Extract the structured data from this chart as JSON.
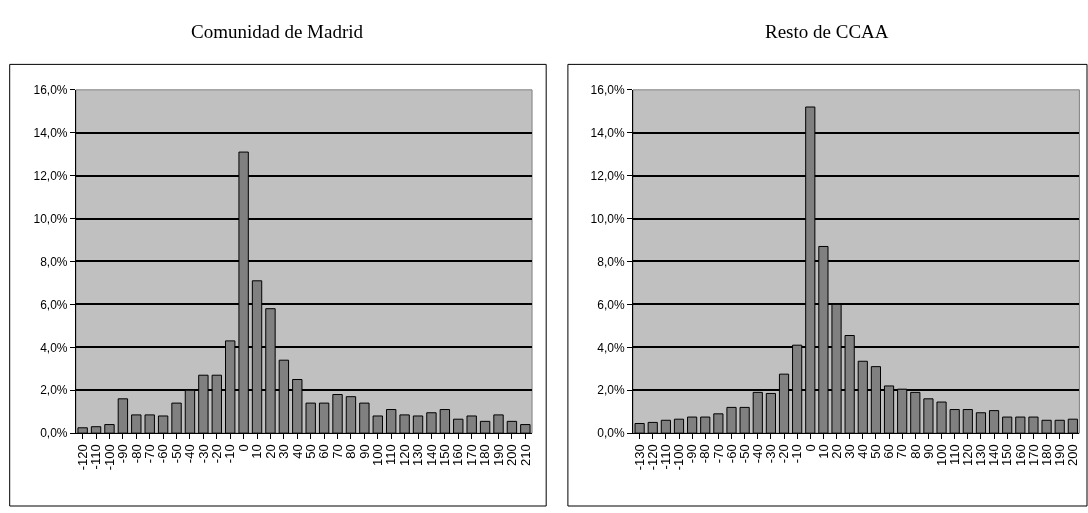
{
  "chart_data": [
    {
      "type": "bar",
      "title": "Comunidad de Madrid",
      "categories": [
        "-120",
        "-110",
        "-100",
        "-90",
        "-80",
        "-70",
        "-60",
        "-50",
        "-40",
        "-30",
        "-20",
        "-10",
        "0",
        "10",
        "20",
        "30",
        "40",
        "50",
        "60",
        "70",
        "80",
        "90",
        "100",
        "110",
        "120",
        "130",
        "140",
        "150",
        "160",
        "170",
        "180",
        "190",
        "200",
        "210"
      ],
      "values": [
        0.25,
        0.3,
        0.4,
        1.6,
        0.85,
        0.85,
        0.8,
        1.4,
        2.0,
        2.7,
        2.7,
        4.3,
        13.1,
        7.1,
        5.8,
        3.4,
        2.5,
        1.4,
        1.4,
        1.8,
        1.7,
        1.4,
        0.8,
        1.1,
        0.85,
        0.8,
        0.95,
        1.1,
        0.65,
        0.8,
        0.55,
        0.85,
        0.55,
        0.4
      ],
      "color": "#808080",
      "ylim": [
        0,
        16
      ],
      "yticks": [
        {
          "value": 0,
          "label": "0,0%"
        },
        {
          "value": 2,
          "label": "2,0%"
        },
        {
          "value": 4,
          "label": "4,0%"
        },
        {
          "value": 6,
          "label": "6,0%"
        },
        {
          "value": 8,
          "label": "8,0%"
        },
        {
          "value": 10,
          "label": "10,0%"
        },
        {
          "value": 12,
          "label": "12,0%"
        },
        {
          "value": 14,
          "label": "14,0%"
        },
        {
          "value": 16,
          "label": "16,0%"
        }
      ],
      "grid": "y",
      "legend": false
    },
    {
      "type": "bar",
      "title": "Resto de CCAA",
      "categories": [
        "-130",
        "-120",
        "-110",
        "-100",
        "-90",
        "-80",
        "-70",
        "-60",
        "-50",
        "-40",
        "-30",
        "-20",
        "-10",
        "0",
        "10",
        "20",
        "30",
        "40",
        "50",
        "60",
        "70",
        "80",
        "90",
        "100",
        "110",
        "120",
        "130",
        "140",
        "150",
        "160",
        "170",
        "180",
        "190",
        "200"
      ],
      "values": [
        0.45,
        0.5,
        0.6,
        0.65,
        0.75,
        0.75,
        0.9,
        1.2,
        1.2,
        1.9,
        1.85,
        2.75,
        4.1,
        15.2,
        8.7,
        6.0,
        4.55,
        3.35,
        3.1,
        2.2,
        2.05,
        1.9,
        1.6,
        1.45,
        1.1,
        1.1,
        0.95,
        1.05,
        0.75,
        0.75,
        0.75,
        0.6,
        0.6,
        0.65
      ],
      "color": "#808080",
      "ylim": [
        0,
        16
      ],
      "yticks": [
        {
          "value": 0,
          "label": "0,0%"
        },
        {
          "value": 2,
          "label": "2,0%"
        },
        {
          "value": 4,
          "label": "4,0%"
        },
        {
          "value": 6,
          "label": "6,0%"
        },
        {
          "value": 8,
          "label": "8,0%"
        },
        {
          "value": 10,
          "label": "10,0%"
        },
        {
          "value": 12,
          "label": "12,0%"
        },
        {
          "value": 14,
          "label": "14,0%"
        },
        {
          "value": 16,
          "label": "16,0%"
        }
      ],
      "grid": "y",
      "legend": false
    }
  ]
}
